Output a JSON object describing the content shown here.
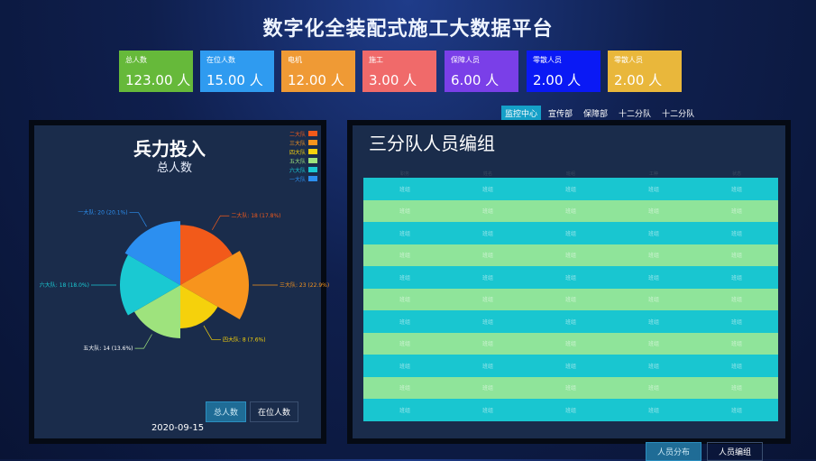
{
  "header": {
    "title": "数字化全装配式施工大数据平台"
  },
  "stats": [
    {
      "label": "总人数",
      "value": "123.00 人",
      "color": "#66b93a"
    },
    {
      "label": "在位人数",
      "value": "15.00 人",
      "color": "#2f9bf0"
    },
    {
      "label": "电机",
      "value": "12.00 人",
      "color": "#ef9a35"
    },
    {
      "label": "施工",
      "value": "3.00 人",
      "color": "#f06a6a"
    },
    {
      "label": "保障人员",
      "value": "6.00 人",
      "color": "#7a3fe8"
    },
    {
      "label": "零散人员",
      "value": "2.00 人",
      "color": "#0a19f5"
    },
    {
      "label": "零散人员",
      "value": "2.00 人",
      "color": "#e9b73b"
    }
  ],
  "top_tabs": [
    "监控中心",
    "宣传部",
    "保障部",
    "十二分队",
    "十二分队"
  ],
  "left_panel": {
    "title": "兵力投入",
    "subtitle": "总人数",
    "legend": [
      {
        "name": "二大队",
        "color": "#f25a1a"
      },
      {
        "name": "三大队",
        "color": "#f7941d"
      },
      {
        "name": "四大队",
        "color": "#f5d10c"
      },
      {
        "name": "五大队",
        "color": "#9ee37d"
      },
      {
        "name": "六大队",
        "color": "#1ac9d2"
      },
      {
        "name": "一大队",
        "color": "#2c8ff0"
      }
    ],
    "buttons": [
      "总人数",
      "在位人数"
    ],
    "date": "2020-09-15"
  },
  "chart_data": {
    "type": "pie",
    "title": "兵力投入",
    "subtitle": "总人数",
    "slices": [
      {
        "name": "二大队",
        "value": 17.8,
        "color": "#f25a1a",
        "label": "二大队: 18 (17.8%)"
      },
      {
        "name": "三大队",
        "value": 22.9,
        "color": "#f7941d",
        "label": "三大队: 23 (22.9%)"
      },
      {
        "name": "四大队",
        "value": 7.6,
        "color": "#f5d10c",
        "label": "四大队: 8 (7.6%)"
      },
      {
        "name": "五大队",
        "value": 13.6,
        "color": "#9ee37d",
        "label": "五大队: 14 (13.6%)"
      },
      {
        "name": "六大队",
        "value": 18.0,
        "color": "#1ac9d2",
        "label": "六大队: 18 (18.0%)"
      },
      {
        "name": "一大队",
        "value": 20.1,
        "color": "#2c8ff0",
        "label": "一大队: 20 (20.1%)"
      }
    ]
  },
  "right_panel": {
    "title": "三分队人员编组",
    "headers": [
      "职务",
      "姓名",
      "班组",
      "工种",
      "状态"
    ],
    "rows": [
      [
        "班组",
        "班组",
        "班组",
        "班组",
        "班组"
      ],
      [
        "班组",
        "班组",
        "班组",
        "班组",
        "班组"
      ],
      [
        "班组",
        "班组",
        "班组",
        "班组",
        "班组"
      ],
      [
        "班组",
        "班组",
        "班组",
        "班组",
        "班组"
      ],
      [
        "班组",
        "班组",
        "班组",
        "班组",
        "班组"
      ],
      [
        "班组",
        "班组",
        "班组",
        "班组",
        "班组"
      ],
      [
        "班组",
        "班组",
        "班组",
        "班组",
        "班组"
      ],
      [
        "班组",
        "班组",
        "班组",
        "班组",
        "班组"
      ],
      [
        "班组",
        "班组",
        "班组",
        "班组",
        "班组"
      ],
      [
        "班组",
        "班组",
        "班组",
        "班组",
        "班组"
      ],
      [
        "班组",
        "班组",
        "班组",
        "班组",
        "班组"
      ]
    ]
  },
  "bottom_tabs": [
    "人员分布",
    "人员编组"
  ]
}
